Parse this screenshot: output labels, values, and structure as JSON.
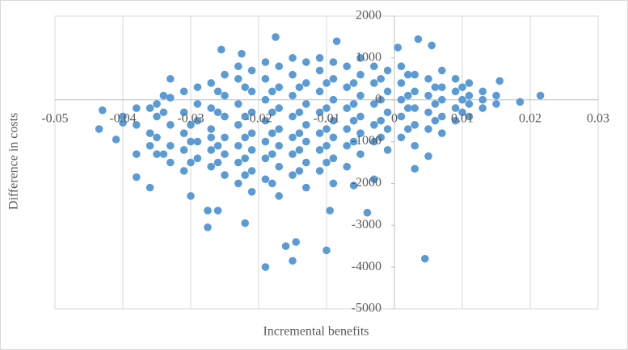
{
  "chart_data": {
    "type": "scatter",
    "x_label": "Incremental benefits",
    "y_label": "Difference in  costs",
    "color": "#5b9bd5",
    "grid": true,
    "xlim": [
      -0.05,
      0.03
    ],
    "ylim": [
      -5000,
      2000
    ],
    "xticks": [
      -0.05,
      -0.04,
      -0.03,
      -0.02,
      -0.01,
      0,
      0.01,
      0.02,
      0.03
    ],
    "yticks": [
      2000,
      1000,
      0,
      -1000,
      -2000,
      -3000,
      -4000,
      -5000
    ],
    "x": [
      -0.035,
      -0.035,
      -0.035,
      -0.035,
      -0.033,
      -0.033,
      -0.033,
      -0.033,
      -0.031,
      -0.031,
      -0.031,
      -0.031,
      -0.031,
      -0.029,
      -0.029,
      -0.029,
      -0.029,
      -0.029,
      -0.027,
      -0.027,
      -0.027,
      -0.027,
      -0.027,
      -0.027,
      -0.025,
      -0.025,
      -0.025,
      -0.025,
      -0.025,
      -0.025,
      -0.023,
      -0.023,
      -0.023,
      -0.023,
      -0.023,
      -0.023,
      -0.023,
      -0.021,
      -0.021,
      -0.021,
      -0.021,
      -0.021,
      -0.021,
      -0.021,
      -0.019,
      -0.019,
      -0.019,
      -0.019,
      -0.019,
      -0.019,
      -0.019,
      -0.017,
      -0.017,
      -0.017,
      -0.017,
      -0.017,
      -0.017,
      -0.017,
      -0.015,
      -0.015,
      -0.015,
      -0.015,
      -0.015,
      -0.015,
      -0.015,
      -0.013,
      -0.013,
      -0.013,
      -0.013,
      -0.013,
      -0.013,
      -0.013,
      -0.011,
      -0.011,
      -0.011,
      -0.011,
      -0.011,
      -0.011,
      -0.011,
      -0.009,
      -0.009,
      -0.009,
      -0.009,
      -0.009,
      -0.009,
      -0.009,
      -0.007,
      -0.007,
      -0.007,
      -0.007,
      -0.007,
      -0.007,
      -0.005,
      -0.005,
      -0.005,
      -0.005,
      -0.005,
      -0.005,
      -0.003,
      -0.003,
      -0.003,
      -0.003,
      -0.003,
      -0.003,
      -0.001,
      -0.001,
      -0.001,
      -0.001,
      -0.001,
      0.001,
      0.001,
      0.001,
      0.001,
      0.001,
      0.003,
      0.003,
      0.003,
      0.003,
      0.003,
      0.005,
      0.005,
      0.005,
      0.005,
      0.007,
      0.007,
      0.007,
      0.007,
      0.007,
      0.009,
      0.009,
      0.009,
      0.009,
      0.011,
      0.011,
      0.011,
      0.011,
      0.013,
      0.013,
      0.013,
      0.015,
      0.015,
      -0.038,
      -0.038,
      -0.038,
      -0.04,
      -0.04,
      -0.036,
      -0.036,
      -0.036,
      -0.034,
      -0.034,
      -0.034,
      -0.03,
      -0.03,
      -0.03,
      -0.026,
      -0.026,
      -0.026,
      -0.026,
      -0.022,
      -0.022,
      -0.022,
      -0.022,
      -0.022,
      -0.018,
      -0.018,
      -0.018,
      -0.018,
      -0.018,
      -0.014,
      -0.014,
      -0.014,
      -0.014,
      -0.014,
      -0.01,
      -0.01,
      -0.01,
      -0.01,
      -0.01,
      -0.006,
      -0.006,
      -0.006,
      -0.006,
      -0.002,
      -0.002,
      -0.002,
      -0.002,
      0.002,
      0.002,
      0.002,
      0.002,
      0.006,
      0.006,
      0.006,
      0.01,
      0.01,
      0.01,
      -0.0435,
      -0.043,
      -0.041,
      -0.038,
      -0.036,
      -0.033,
      -0.03,
      -0.0275,
      -0.0275,
      -0.026,
      -0.022,
      -0.019,
      -0.016,
      -0.0145,
      -0.015,
      -0.01,
      0.0045,
      0.0215,
      0.0185,
      0.0155,
      -0.0175,
      -0.0085,
      0.0035,
      0.0055,
      0.0005,
      -0.0255,
      -0.0225,
      -0.004,
      -0.0095,
      0.003,
      0.005,
      -0.006
    ],
    "values": [
      -400,
      -900,
      -1300,
      -100,
      -600,
      -1100,
      50,
      -1500,
      -300,
      -800,
      -1200,
      200,
      -1700,
      -500,
      -1000,
      -100,
      -1400,
      300,
      -700,
      -200,
      -1200,
      400,
      -1600,
      -900,
      -400,
      -900,
      100,
      -1300,
      600,
      -1800,
      -600,
      -100,
      -1100,
      500,
      -1500,
      800,
      -2000,
      -300,
      -800,
      200,
      -1200,
      700,
      -1700,
      -2200,
      -500,
      0,
      -1000,
      500,
      -1400,
      900,
      -1900,
      -200,
      -700,
      300,
      -1100,
      800,
      -1600,
      -2300,
      -400,
      100,
      -900,
      600,
      -1300,
      1000,
      -1800,
      -100,
      -600,
      400,
      -1000,
      900,
      -1500,
      -2100,
      -300,
      200,
      -800,
      700,
      -1200,
      1000,
      -1700,
      0,
      -500,
      500,
      -900,
      900,
      -1400,
      -2000,
      -200,
      300,
      -700,
      800,
      -1100,
      -1600,
      100,
      -400,
      600,
      -800,
      1000,
      -1300,
      -100,
      400,
      -600,
      800,
      -1000,
      -1900,
      200,
      -300,
      700,
      -700,
      -1200,
      0,
      400,
      -400,
      800,
      -900,
      200,
      -200,
      600,
      -600,
      -1100,
      100,
      -300,
      500,
      -700,
      0,
      300,
      -400,
      700,
      -800,
      200,
      -200,
      500,
      -500,
      100,
      -100,
      400,
      -400,
      0,
      200,
      -200,
      100,
      -100,
      -200,
      -600,
      -1300,
      -400,
      -550,
      -800,
      -1100,
      -200,
      -300,
      -1300,
      100,
      -600,
      -1000,
      -1500,
      -300,
      -1100,
      -1500,
      200,
      -400,
      -900,
      -1400,
      300,
      -1800,
      -300,
      -800,
      -1300,
      200,
      -2000,
      -300,
      -800,
      -1200,
      300,
      -1700,
      -200,
      -700,
      -1100,
      400,
      -1500,
      -100,
      -500,
      -1000,
      400,
      0,
      -500,
      -900,
      500,
      100,
      -200,
      -700,
      600,
      -100,
      -500,
      300,
      0,
      300,
      -300,
      -700,
      -250,
      -950,
      -1850,
      -2100,
      500,
      -2300,
      -2650,
      -3050,
      -2650,
      -2950,
      -4000,
      -3500,
      -3400,
      -3850,
      -3600,
      -3800,
      100,
      -50,
      450,
      1500,
      1400,
      1450,
      1300,
      1250,
      1200,
      1100,
      -2700,
      -2650,
      -1650,
      -1350,
      -2050
    ]
  }
}
